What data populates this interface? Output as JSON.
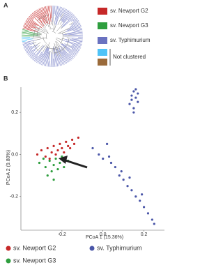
{
  "panel_a": {
    "label": "A",
    "legend": [
      "sv. Newport G2",
      "sv. Newport G3",
      "sv. Typhimurium",
      "Not clustered"
    ]
  },
  "chart_data": {
    "type": "scatter",
    "panel_label": "B",
    "x_label": "PCoA 1 (15.36%)",
    "y_label": "PCoA 2 (9.80%)",
    "xlim": [
      -0.4,
      0.3
    ],
    "ylim": [
      -0.36,
      0.32
    ],
    "xticks": [
      -0.2,
      {
        "value": 0,
        "label": "0.0"
      },
      0.2
    ],
    "yticks": [
      -0.2,
      {
        "value": 0,
        "label": "0.0"
      },
      0.2
    ],
    "series": [
      {
        "name": "sv. Newport G2",
        "color": "#c62828",
        "x": [
          -0.32,
          -0.3,
          -0.28,
          -0.27,
          -0.25,
          -0.24,
          -0.22,
          -0.21,
          -0.2,
          -0.18,
          -0.17,
          -0.15,
          -0.14,
          -0.12,
          -0.26,
          -0.23,
          -0.19,
          -0.16
        ],
        "values": [
          0.0,
          0.02,
          -0.01,
          0.03,
          0.01,
          0.04,
          0.02,
          0.05,
          0.03,
          0.06,
          0.04,
          0.07,
          0.05,
          0.08,
          -0.02,
          0.0,
          0.01,
          0.03
        ]
      },
      {
        "name": "sv. Newport G3",
        "color": "#2e9e3e",
        "x": [
          -0.31,
          -0.29,
          -0.28,
          -0.26,
          -0.25,
          -0.24,
          -0.23,
          -0.22,
          -0.21,
          -0.2,
          -0.19,
          -0.17,
          -0.27,
          -0.24
        ],
        "values": [
          -0.04,
          -0.02,
          -0.06,
          -0.03,
          -0.08,
          -0.05,
          -0.02,
          -0.07,
          -0.04,
          -0.01,
          -0.06,
          -0.03,
          -0.1,
          -0.12
        ]
      },
      {
        "name": "sv. Typhimurium",
        "color": "#4a56a8",
        "x": [
          0.13,
          0.14,
          0.15,
          0.16,
          0.17,
          0.15,
          0.16,
          0.14,
          0.17,
          0.15,
          -0.05,
          -0.02,
          0.0,
          0.02,
          0.04,
          0.06,
          0.08,
          0.1,
          0.12,
          0.14,
          0.16,
          0.18,
          0.2,
          0.22,
          0.24,
          0.25,
          0.03,
          0.09,
          0.13,
          0.19
        ],
        "values": [
          0.24,
          0.28,
          0.3,
          0.27,
          0.25,
          0.22,
          0.31,
          0.26,
          0.29,
          0.2,
          0.03,
          0.0,
          -0.02,
          0.05,
          -0.04,
          -0.06,
          -0.1,
          -0.12,
          -0.15,
          -0.17,
          -0.2,
          -0.22,
          -0.25,
          -0.28,
          -0.31,
          -0.33,
          -0.01,
          -0.08,
          -0.11,
          -0.19
        ]
      }
    ]
  }
}
